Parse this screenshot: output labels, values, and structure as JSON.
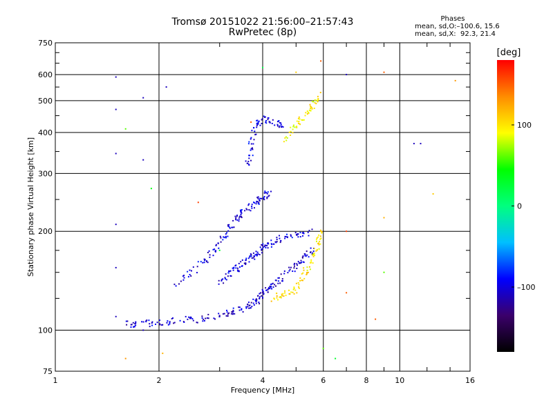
{
  "chart_data": {
    "type": "scatter",
    "title": "Tromsø 20151022 21:56:00–21:57:43",
    "subtitle": "RwPretec (8p)",
    "xlabel": "Frequency [MHz]",
    "ylabel": "Stationary phase Virtual Height [km]",
    "x_scale": "log",
    "y_scale": "log",
    "xlim": [
      1,
      16
    ],
    "ylim": [
      75,
      750
    ],
    "x_ticks": [
      "1",
      "2",
      "4",
      "6",
      "8",
      "10",
      "16"
    ],
    "y_ticks": [
      "75",
      "100",
      "200",
      "300",
      "400",
      "500",
      "600",
      "750"
    ],
    "grid": true,
    "stats": {
      "header": "Phases",
      "line_o": "mean, sd,O:–100.6, 15.6",
      "line_x": "mean, sd,X:  92.3, 21.4"
    },
    "colorbar": {
      "label": "[deg]",
      "ticks": [
        "100",
        "0",
        "–100"
      ],
      "tick_values": [
        100,
        0,
        -100
      ],
      "range": [
        -180,
        180
      ],
      "colors": [
        "#000000",
        "#3b006b",
        "#0000ff",
        "#00bfff",
        "#00ff7f",
        "#00ff00",
        "#ffff00",
        "#ff8c00",
        "#ff0000"
      ]
    },
    "traces": [
      {
        "name": "o-lower",
        "phase": -105,
        "points": [
          [
            1.6,
            104
          ],
          [
            1.8,
            105
          ],
          [
            2.0,
            106
          ],
          [
            2.3,
            107
          ],
          [
            2.6,
            108
          ],
          [
            3.0,
            111
          ],
          [
            3.3,
            114
          ],
          [
            3.6,
            118
          ],
          [
            3.8,
            122
          ],
          [
            3.95,
            127
          ],
          [
            4.1,
            132
          ],
          [
            4.3,
            138
          ],
          [
            4.6,
            146
          ],
          [
            5.0,
            158
          ],
          [
            5.3,
            168
          ],
          [
            5.6,
            176
          ]
        ]
      },
      {
        "name": "o-band",
        "phase": -100,
        "points": [
          [
            3.0,
            140
          ],
          [
            3.2,
            148
          ],
          [
            3.4,
            155
          ],
          [
            3.6,
            162
          ],
          [
            3.8,
            170
          ],
          [
            4.0,
            178
          ],
          [
            4.2,
            184
          ],
          [
            4.5,
            190
          ],
          [
            5.0,
            196
          ],
          [
            5.6,
            198
          ]
        ]
      },
      {
        "name": "o-upper",
        "phase": -100,
        "points": [
          [
            2.2,
            136
          ],
          [
            2.5,
            150
          ],
          [
            2.8,
            168
          ],
          [
            3.0,
            185
          ],
          [
            3.2,
            205
          ],
          [
            3.4,
            222
          ],
          [
            3.6,
            235
          ],
          [
            3.85,
            245
          ],
          [
            4.0,
            255
          ],
          [
            4.2,
            262
          ]
        ]
      },
      {
        "name": "o-cusp",
        "phase": -100,
        "points": [
          [
            3.6,
            300
          ],
          [
            3.7,
            360
          ],
          [
            3.8,
            420
          ],
          [
            4.0,
            440
          ],
          [
            4.3,
            430
          ],
          [
            4.6,
            420
          ]
        ]
      },
      {
        "name": "x-trace",
        "phase": 100,
        "points": [
          [
            4.3,
            125
          ],
          [
            4.6,
            128
          ],
          [
            5.0,
            133
          ],
          [
            5.3,
            150
          ],
          [
            5.6,
            165
          ],
          [
            5.8,
            185
          ],
          [
            5.9,
            200
          ]
        ]
      },
      {
        "name": "x-upper",
        "phase": 95,
        "points": [
          [
            4.6,
            380
          ],
          [
            5.0,
            420
          ],
          [
            5.3,
            450
          ],
          [
            5.6,
            480
          ],
          [
            5.8,
            520
          ]
        ]
      }
    ],
    "scatter": [
      {
        "x": 1.5,
        "y": 590,
        "phase": -110
      },
      {
        "x": 1.5,
        "y": 470,
        "phase": -110
      },
      {
        "x": 1.5,
        "y": 345,
        "phase": -110
      },
      {
        "x": 1.5,
        "y": 210,
        "phase": -110
      },
      {
        "x": 1.5,
        "y": 155,
        "phase": -110
      },
      {
        "x": 1.5,
        "y": 110,
        "phase": -110
      },
      {
        "x": 1.8,
        "y": 510,
        "phase": -110
      },
      {
        "x": 1.8,
        "y": 330,
        "phase": -110
      },
      {
        "x": 1.8,
        "y": 100,
        "phase": -110
      },
      {
        "x": 1.6,
        "y": 410,
        "phase": 60
      },
      {
        "x": 1.6,
        "y": 82,
        "phase": 130
      },
      {
        "x": 1.9,
        "y": 270,
        "phase": 40
      },
      {
        "x": 2.05,
        "y": 85,
        "phase": 120
      },
      {
        "x": 2.1,
        "y": 550,
        "phase": -110
      },
      {
        "x": 2.6,
        "y": 245,
        "phase": 160
      },
      {
        "x": 3.0,
        "y": 175,
        "phase": 30
      },
      {
        "x": 3.7,
        "y": 430,
        "phase": 150
      },
      {
        "x": 4.0,
        "y": 630,
        "phase": 20
      },
      {
        "x": 5.0,
        "y": 610,
        "phase": 110
      },
      {
        "x": 5.9,
        "y": 660,
        "phase": 150
      },
      {
        "x": 5.9,
        "y": 200,
        "phase": 110
      },
      {
        "x": 6.0,
        "y": 88,
        "phase": 60
      },
      {
        "x": 6.5,
        "y": 82,
        "phase": 30
      },
      {
        "x": 7.0,
        "y": 600,
        "phase": -110
      },
      {
        "x": 7.0,
        "y": 200,
        "phase": 160
      },
      {
        "x": 7.0,
        "y": 130,
        "phase": 150
      },
      {
        "x": 8.5,
        "y": 108,
        "phase": 150
      },
      {
        "x": 9.0,
        "y": 610,
        "phase": 150
      },
      {
        "x": 9.0,
        "y": 220,
        "phase": 120
      },
      {
        "x": 9.0,
        "y": 150,
        "phase": 60
      },
      {
        "x": 11.0,
        "y": 370,
        "phase": -110
      },
      {
        "x": 11.5,
        "y": 370,
        "phase": -110
      },
      {
        "x": 12.5,
        "y": 260,
        "phase": 110
      },
      {
        "x": 14.5,
        "y": 575,
        "phase": 130
      }
    ]
  }
}
